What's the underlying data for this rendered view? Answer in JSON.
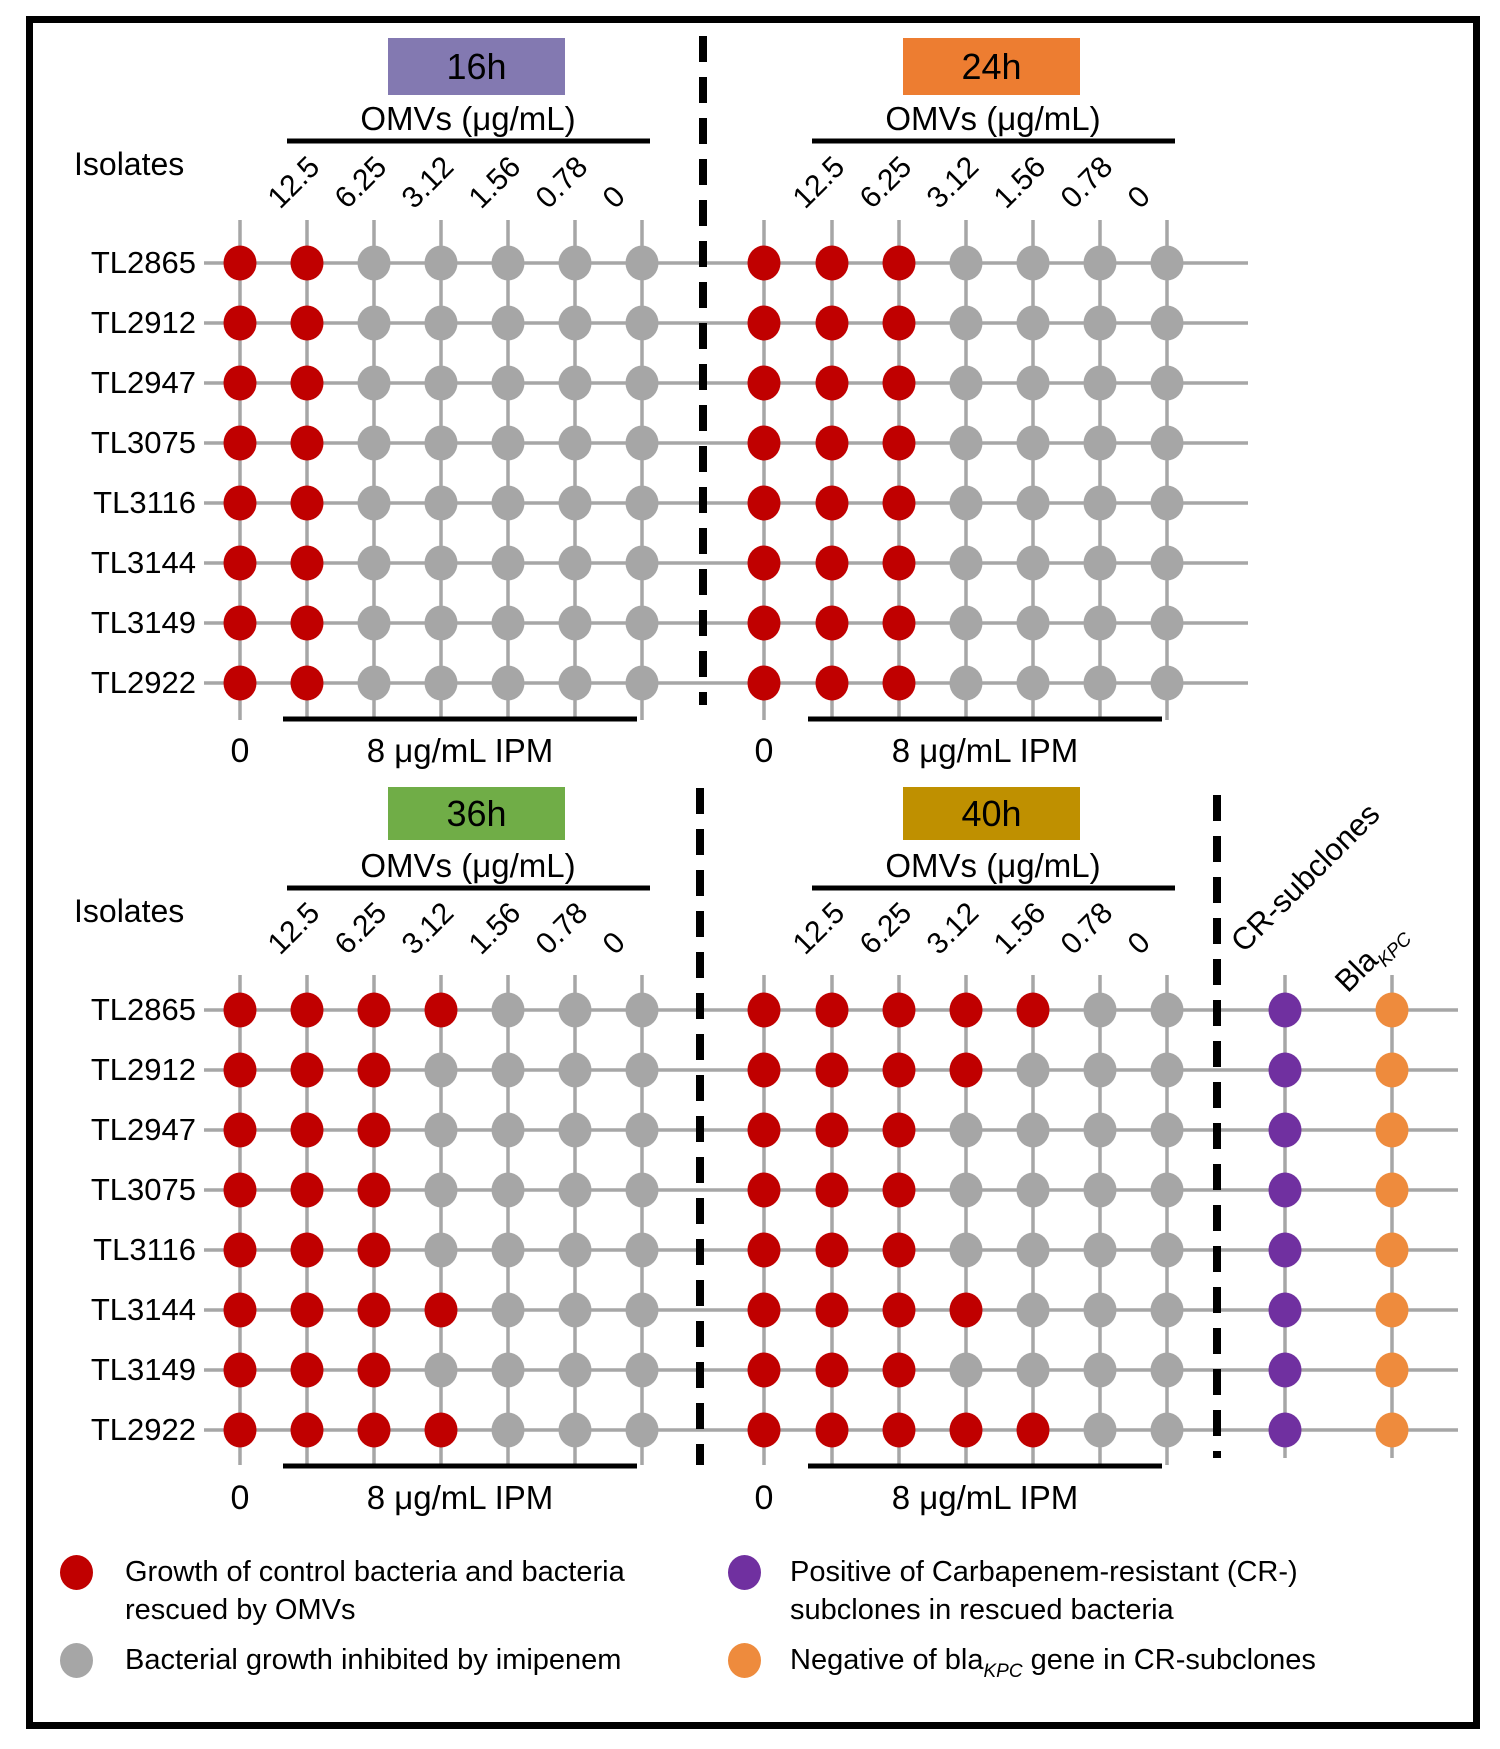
{
  "chart_data": {
    "type": "dot-matrix",
    "isolates_label": "Isolates",
    "isolates": [
      "TL2865",
      "TL2912",
      "TL2947",
      "TL3075",
      "TL3116",
      "TL3144",
      "TL3149",
      "TL2922"
    ],
    "omv_axis_label": "OMVs (μg/mL)",
    "omv_concentrations": [
      "12.5",
      "6.25",
      "3.12",
      "1.56",
      "0.78",
      "0"
    ],
    "control_label": "0",
    "ipm_label": "8 μg/mL IPM",
    "colors": {
      "growth": "#C00000",
      "inhibited": "#A6A6A6",
      "cr_positive": "#7030A0",
      "bla_negative": "#EE8B3D",
      "grid_line": "#A6A6A6"
    },
    "panels": [
      {
        "label": "16h",
        "header_color": "#8379B1",
        "control_values": [
          1,
          1,
          1,
          1,
          1,
          1,
          1,
          1
        ],
        "growth_matrix": [
          [
            1,
            0,
            0,
            0,
            0,
            0
          ],
          [
            1,
            0,
            0,
            0,
            0,
            0
          ],
          [
            1,
            0,
            0,
            0,
            0,
            0
          ],
          [
            1,
            0,
            0,
            0,
            0,
            0
          ],
          [
            1,
            0,
            0,
            0,
            0,
            0
          ],
          [
            1,
            0,
            0,
            0,
            0,
            0
          ],
          [
            1,
            0,
            0,
            0,
            0,
            0
          ],
          [
            1,
            0,
            0,
            0,
            0,
            0
          ]
        ]
      },
      {
        "label": "24h",
        "header_color": "#ED7D31",
        "control_values": [
          1,
          1,
          1,
          1,
          1,
          1,
          1,
          1
        ],
        "growth_matrix": [
          [
            1,
            1,
            0,
            0,
            0,
            0
          ],
          [
            1,
            1,
            0,
            0,
            0,
            0
          ],
          [
            1,
            1,
            0,
            0,
            0,
            0
          ],
          [
            1,
            1,
            0,
            0,
            0,
            0
          ],
          [
            1,
            1,
            0,
            0,
            0,
            0
          ],
          [
            1,
            1,
            0,
            0,
            0,
            0
          ],
          [
            1,
            1,
            0,
            0,
            0,
            0
          ],
          [
            1,
            1,
            0,
            0,
            0,
            0
          ]
        ]
      },
      {
        "label": "36h",
        "header_color": "#70AD47",
        "control_values": [
          1,
          1,
          1,
          1,
          1,
          1,
          1,
          1
        ],
        "growth_matrix": [
          [
            1,
            1,
            1,
            0,
            0,
            0
          ],
          [
            1,
            1,
            0,
            0,
            0,
            0
          ],
          [
            1,
            1,
            0,
            0,
            0,
            0
          ],
          [
            1,
            1,
            0,
            0,
            0,
            0
          ],
          [
            1,
            1,
            0,
            0,
            0,
            0
          ],
          [
            1,
            1,
            1,
            0,
            0,
            0
          ],
          [
            1,
            1,
            0,
            0,
            0,
            0
          ],
          [
            1,
            1,
            1,
            0,
            0,
            0
          ]
        ]
      },
      {
        "label": "40h",
        "header_color": "#BF9000",
        "control_values": [
          1,
          1,
          1,
          1,
          1,
          1,
          1,
          1
        ],
        "growth_matrix": [
          [
            1,
            1,
            1,
            1,
            0,
            0
          ],
          [
            1,
            1,
            1,
            0,
            0,
            0
          ],
          [
            1,
            1,
            0,
            0,
            0,
            0
          ],
          [
            1,
            1,
            0,
            0,
            0,
            0
          ],
          [
            1,
            1,
            0,
            0,
            0,
            0
          ],
          [
            1,
            1,
            1,
            0,
            0,
            0
          ],
          [
            1,
            1,
            0,
            0,
            0,
            0
          ],
          [
            1,
            1,
            1,
            1,
            0,
            0
          ]
        ]
      }
    ],
    "extra_columns": [
      {
        "name": "CR-subclones",
        "label": {
          "pre": "CR-subclones",
          "sub": ""
        },
        "dot_color": "#7030A0",
        "values": [
          1,
          1,
          1,
          1,
          1,
          1,
          1,
          1
        ]
      },
      {
        "name": "BlaKPC",
        "label": {
          "pre": "Bla",
          "sub": "KPC"
        },
        "dot_color": "#EE8B3D",
        "values": [
          1,
          1,
          1,
          1,
          1,
          1,
          1,
          1
        ]
      }
    ]
  },
  "legend": {
    "entries": [
      {
        "dot_color": "#C00000",
        "line1": "Growth of control bacteria and bacteria",
        "line2": "rescued by OMVs"
      },
      {
        "dot_color": "#A6A6A6",
        "line1": "Bacterial growth inhibited by imipenem"
      },
      {
        "dot_color": "#7030A0",
        "line1": "Positive of Carbapenem-resistant (CR-)",
        "line2": "subclones in rescued bacteria"
      },
      {
        "dot_color": "#EE8B3D",
        "line1_pre": "Negative of bla",
        "line1_sub": "KPC",
        "line1_post": " gene in CR-subclones"
      }
    ]
  }
}
